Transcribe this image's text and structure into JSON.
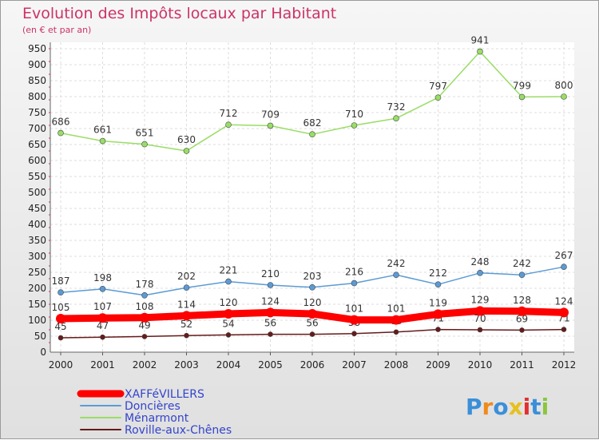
{
  "chart_data": {
    "type": "line",
    "title": "Evolution des Impôts locaux par Habitant",
    "subtitle": "(en € et par an)",
    "x": [
      "2000",
      "2001",
      "2002",
      "2003",
      "2004",
      "2005",
      "2006",
      "2007",
      "2008",
      "2009",
      "2010",
      "2011",
      "2012"
    ],
    "ylim": [
      0,
      950
    ],
    "yticks": [
      0,
      50,
      100,
      150,
      200,
      250,
      300,
      350,
      400,
      450,
      500,
      550,
      600,
      650,
      700,
      750,
      800,
      850,
      900,
      950
    ],
    "grid": true,
    "legend_position": "bottom-left",
    "series": [
      {
        "name": "XAFFéVILLERS",
        "color": "#ff0000",
        "values": [
          105,
          107,
          108,
          114,
          120,
          124,
          120,
          101,
          101,
          119,
          129,
          128,
          124
        ]
      },
      {
        "name": "Doncières",
        "color": "#5b9bd5",
        "values": [
          187,
          198,
          178,
          202,
          221,
          210,
          203,
          216,
          242,
          212,
          248,
          242,
          267
        ]
      },
      {
        "name": "Ménarmont",
        "color": "#99dd66",
        "values": [
          686,
          661,
          651,
          630,
          712,
          709,
          682,
          710,
          732,
          797,
          941,
          799,
          800
        ]
      },
      {
        "name": "Roville-aux-Chênes",
        "color": "#661a1a",
        "values": [
          45,
          47,
          49,
          52,
          54,
          56,
          56,
          58,
          63,
          71,
          70,
          69,
          71
        ]
      }
    ]
  },
  "brand": {
    "logo_text": "Proxiti",
    "letter_colors": [
      "#3a8fd8",
      "#f08a1c",
      "#3a8fd8",
      "#e8c020",
      "#e23030",
      "#3a8fd8",
      "#8ac640"
    ]
  },
  "colors": {
    "title": "#cc3366",
    "axis_text": "#222222",
    "grid": "#dddddd",
    "legend_text": "#3344cc"
  }
}
